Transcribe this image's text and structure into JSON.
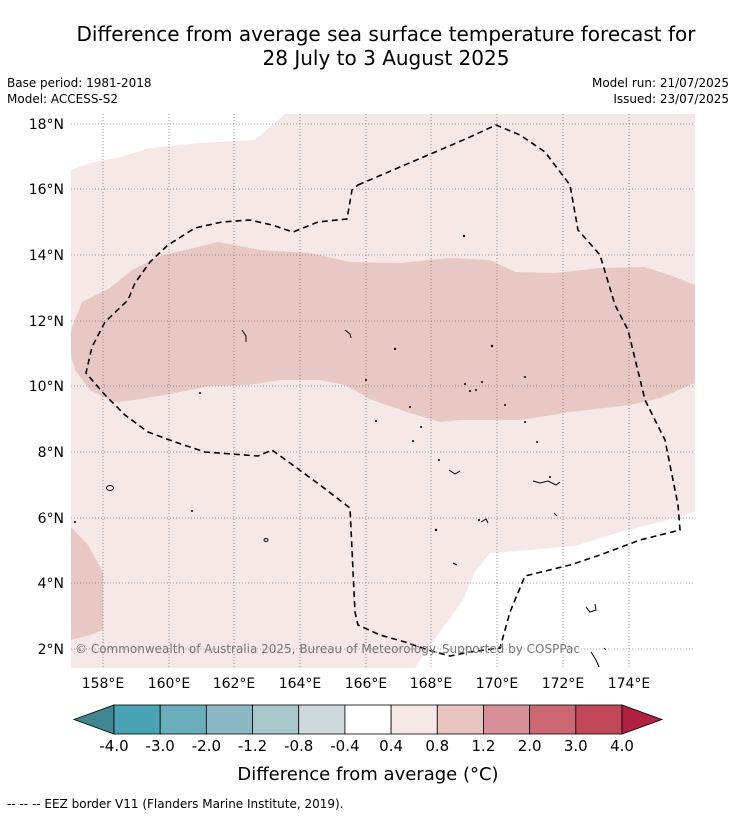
{
  "title": {
    "line1": "Difference from average sea surface temperature forecast for",
    "line2": "28 July to 3 August 2025"
  },
  "meta": {
    "base_period": "Base period: 1981-2018",
    "model": "Model: ACCESS-S2",
    "model_run": "Model run: 21/07/2025",
    "issued": "Issued: 23/07/2025"
  },
  "map": {
    "lon_range": [
      157.0,
      176.0
    ],
    "lat_range": [
      1.5,
      18.2
    ],
    "lon_ticks": [
      "158°E",
      "160°E",
      "162°E",
      "164°E",
      "166°E",
      "168°E",
      "170°E",
      "172°E",
      "174°E"
    ],
    "lat_ticks": [
      "2°N",
      "4°N",
      "6°N",
      "8°N",
      "10°N",
      "12°N",
      "14°N",
      "16°N",
      "18°N"
    ],
    "gridlines": "dotted",
    "copyright": "© Commonwealth of Australia 2025, Bureau of Meteorology. Supported by COSPPac",
    "colors": {
      "band_0_4_to_0_8": "#f5e8e6",
      "band_0_8_to_1_2": "#e8c8c4",
      "eez_border": "#000000"
    }
  },
  "colorbar": {
    "labels": [
      "-4.0",
      "-3.0",
      "-2.0",
      "-1.2",
      "-0.8",
      "-0.4",
      "0.4",
      "0.8",
      "1.2",
      "2.0",
      "3.0",
      "4.0"
    ],
    "colors": [
      "#3f8690",
      "#4aa3b4",
      "#6aaebc",
      "#8cb8c3",
      "#a9c6ca",
      "#cfd8da",
      "#ffffff",
      "#f5e8e6",
      "#e8c4c0",
      "#d89098",
      "#cc6874",
      "#c04858",
      "#b02040"
    ],
    "title": "Difference from average (°C)"
  },
  "footer": {
    "legend": "-- -- -- EEZ border V11 (Flanders Marine Institute, 2019)."
  }
}
